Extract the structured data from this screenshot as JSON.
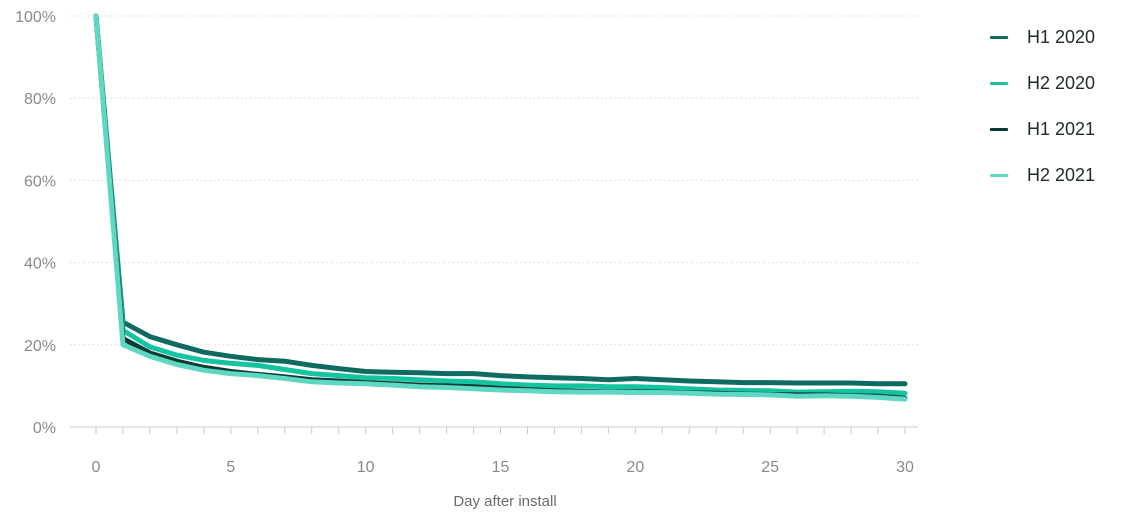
{
  "chart_data": {
    "type": "line",
    "xlabel": "Day after install",
    "ylabel": "",
    "xlim": [
      0,
      30
    ],
    "ylim": [
      0,
      100
    ],
    "xticks": [
      0,
      5,
      10,
      15,
      20,
      25,
      30
    ],
    "yticks": [
      0,
      20,
      40,
      60,
      80,
      100
    ],
    "ytick_labels": [
      "0%",
      "20%",
      "40%",
      "60%",
      "80%",
      "100%"
    ],
    "grid": "horizontal dotted",
    "legend_position": "top-right",
    "x": [
      0,
      1,
      2,
      3,
      4,
      5,
      6,
      7,
      8,
      9,
      10,
      11,
      12,
      13,
      14,
      15,
      16,
      17,
      18,
      19,
      20,
      21,
      22,
      23,
      24,
      25,
      26,
      27,
      28,
      29,
      30
    ],
    "series": [
      {
        "name": "H1 2020",
        "color": "#0f6b5f",
        "values": [
          100,
          25.5,
          22,
          20,
          18.2,
          17.2,
          16.4,
          16,
          15,
          14.2,
          13.5,
          13.3,
          13.2,
          13,
          13,
          12.5,
          12.2,
          12,
          11.8,
          11.5,
          11.8,
          11.5,
          11.2,
          11,
          10.8,
          10.8,
          10.7,
          10.7,
          10.7,
          10.5,
          10.5
        ]
      },
      {
        "name": "H2 2020",
        "color": "#14c4a0",
        "values": [
          100,
          23.5,
          19.5,
          17.5,
          16.2,
          15.5,
          15,
          14,
          13,
          12.5,
          12,
          11.8,
          11.5,
          11.2,
          11,
          10.5,
          10.2,
          10,
          10,
          9.8,
          9.8,
          9.6,
          9.3,
          9,
          8.9,
          8.8,
          8.5,
          8.6,
          8.7,
          8.6,
          8.2
        ]
      },
      {
        "name": "H1 2021",
        "color": "#0b3a36",
        "values": [
          100,
          21.5,
          18,
          16,
          14.5,
          13.5,
          12.8,
          12.2,
          11.5,
          11.2,
          10.8,
          10.5,
          10.2,
          10,
          9.8,
          9.4,
          9.1,
          8.8,
          8.7,
          8.6,
          8.6,
          8.5,
          8.3,
          8.2,
          8,
          7.9,
          7.8,
          7.8,
          7.6,
          7.5,
          7
        ]
      },
      {
        "name": "H2 2021",
        "color": "#5fd8c3",
        "values": [
          100,
          20,
          17.2,
          15.2,
          13.8,
          13,
          12.5,
          11.8,
          11,
          10.7,
          10.5,
          10.2,
          9.8,
          9.6,
          9.3,
          9,
          8.8,
          8.6,
          8.5,
          8.5,
          8.4,
          8.4,
          8.2,
          8,
          7.9,
          7.8,
          7.5,
          7.6,
          7.5,
          7.2,
          6.8
        ]
      }
    ]
  }
}
